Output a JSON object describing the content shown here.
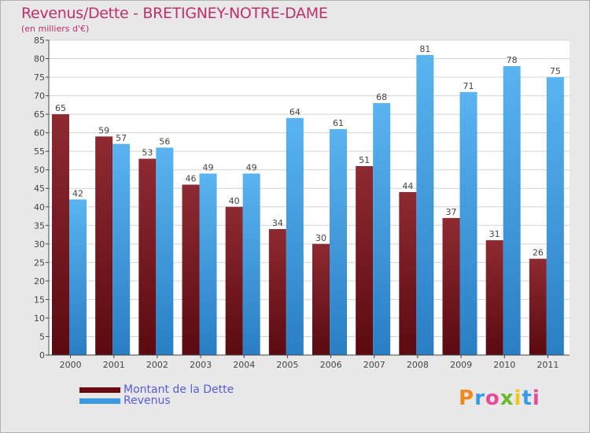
{
  "header": {
    "title": "Revenus/Dette - BRETIGNEY-NOTRE-DAME",
    "subtitle": "(en milliers d'€)"
  },
  "chart_data": {
    "type": "bar",
    "categories": [
      "2000",
      "2001",
      "2002",
      "2003",
      "2004",
      "2005",
      "2006",
      "2007",
      "2008",
      "2009",
      "2010",
      "2011"
    ],
    "series": [
      {
        "name": "Montant de la Dette",
        "color": "#7a1018",
        "values": [
          65,
          59,
          53,
          46,
          40,
          34,
          30,
          51,
          44,
          37,
          31,
          26
        ]
      },
      {
        "name": "Revenus",
        "color": "#3a9ae6",
        "values": [
          42,
          57,
          56,
          49,
          49,
          64,
          61,
          68,
          81,
          71,
          78,
          75
        ]
      }
    ],
    "ylim": [
      0,
      85
    ],
    "ytick_step": 5,
    "grid": true,
    "legend": "bottom-left"
  },
  "branding": {
    "logo_text": "Proxiti"
  }
}
